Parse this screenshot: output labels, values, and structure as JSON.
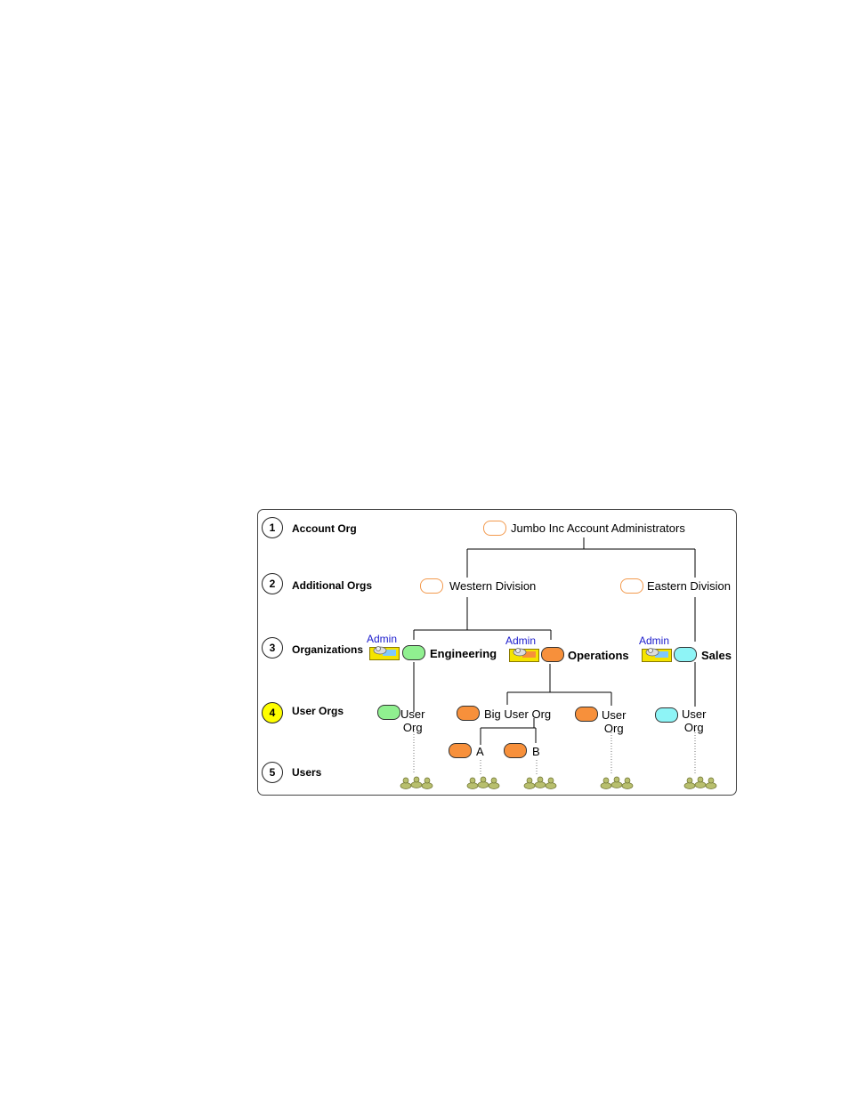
{
  "levels": [
    {
      "num": "1",
      "label": "Account Org",
      "highlight": false
    },
    {
      "num": "2",
      "label": "Additional Orgs",
      "highlight": false
    },
    {
      "num": "3",
      "label": "Organizations",
      "highlight": false
    },
    {
      "num": "4",
      "label": "User Orgs",
      "highlight": true
    },
    {
      "num": "5",
      "label": "Users",
      "highlight": false
    }
  ],
  "nodes": {
    "account": "Jumbo Inc Account Administrators",
    "western": "Western Division",
    "eastern": "Eastern Division",
    "engineering": "Engineering",
    "operations": "Operations",
    "sales": "Sales",
    "eng_user_org": [
      "User",
      "Org"
    ],
    "big_user_org": "Big User Org",
    "ops_user_org": [
      "User",
      "Org"
    ],
    "sales_user_org": [
      "User",
      "Org"
    ],
    "sub_a": "A",
    "sub_b": "B"
  },
  "admin_label": "Admin",
  "icons": {
    "admin": "admin-folder-icon",
    "users": "users-group-icon"
  },
  "colors": {
    "highlight": "#ffff00",
    "account_outline": "#f39a4e",
    "engineering": "#90f090",
    "operations": "#f7903b",
    "sales": "#8ef4f6",
    "admin_label": "#1a1acc"
  }
}
